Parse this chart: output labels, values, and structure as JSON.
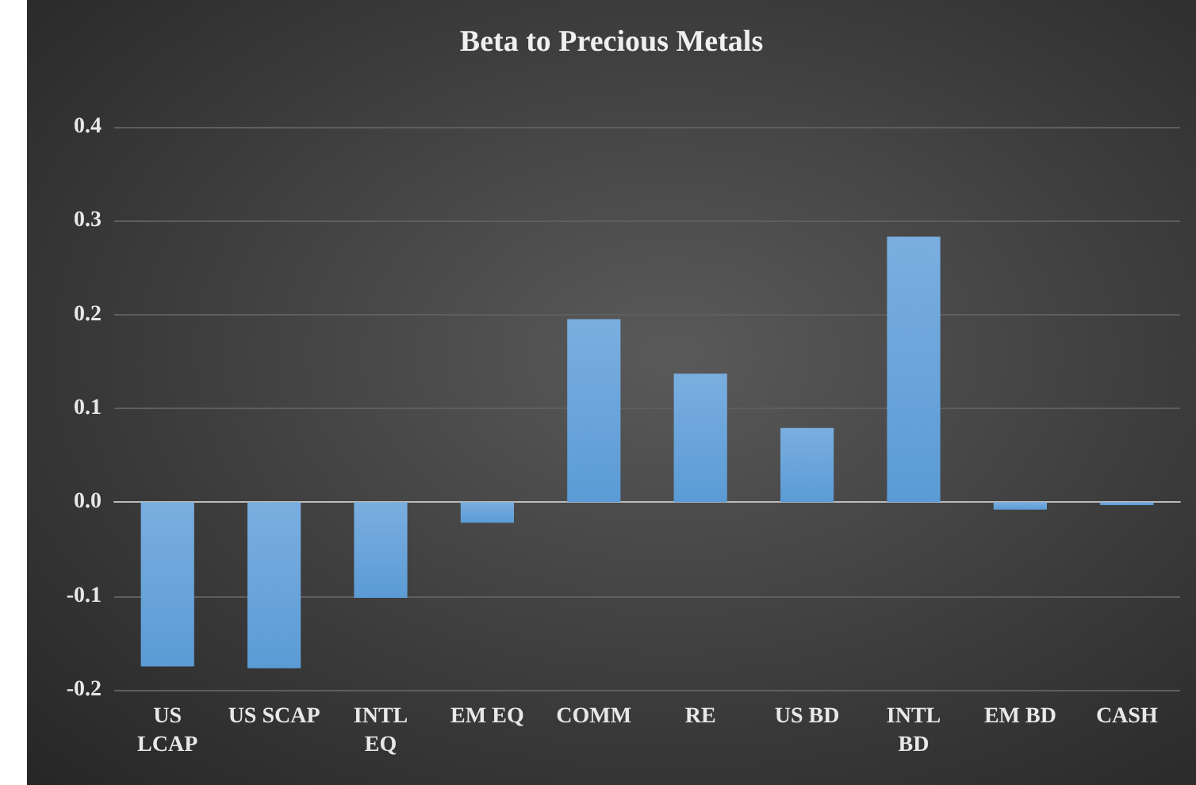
{
  "chart_data": {
    "type": "bar",
    "title": "Beta to Precious Metals",
    "categories": [
      "US\nLCAP",
      "US SCAP",
      "INTL\nEQ",
      "EM EQ",
      "COMM",
      "RE",
      "US BD",
      "INTL\nBD",
      "EM BD",
      "CASH"
    ],
    "values": [
      -0.175,
      -0.177,
      -0.102,
      -0.022,
      0.195,
      0.137,
      0.079,
      0.283,
      -0.008,
      -0.003
    ],
    "color": "#5b9bd5",
    "ylim": [
      -0.2,
      0.4
    ],
    "yticks": [
      -0.2,
      -0.1,
      {
        "value": 0,
        "label": "0.0"
      },
      0.1,
      0.2,
      0.3,
      0.4
    ],
    "grid": "y"
  }
}
